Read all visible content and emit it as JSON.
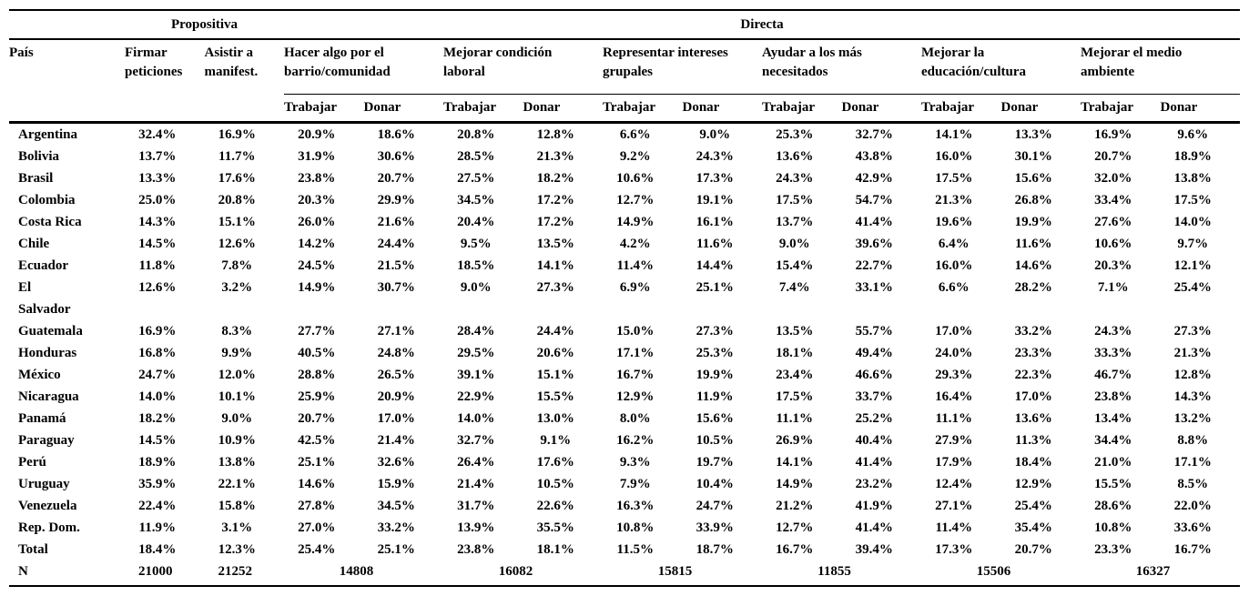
{
  "display": {
    "pais": "País",
    "col_firmar": "Firmar\npeticiones",
    "col_asistir": "Asistir a\nmanifest.",
    "cat_barrio": "Hacer algo por el\nbarrio/comunidad",
    "cat_laboral": "Mejorar condición\nlaboral",
    "cat_grupales": "Representar intereses\ngrupales",
    "cat_necesitados": "Ayudar a los más\nnecesitados",
    "cat_educacion": "Mejorar la\neducación/cultura",
    "cat_ambiente": "Mejorar el medio\nambiente",
    "trabajar": "Trabajar",
    "donar": "Donar"
  },
  "chart_data": {
    "type": "table",
    "groups": [
      {
        "label": "Propositiva",
        "columns": [
          "Firmar peticiones",
          "Asistir a manifest."
        ]
      },
      {
        "label": "Directa",
        "columns": [
          "Hacer algo por el barrio/comunidad",
          "Mejorar condición laboral",
          "Representar intereses grupales",
          "Ayudar a los más necesitados",
          "Mejorar la educación/cultura",
          "Mejorar el medio ambiente"
        ]
      }
    ],
    "row_header": "País",
    "sub_columns": [
      "Trabajar",
      "Donar"
    ],
    "value_column_order": [
      "Firmar peticiones",
      "Asistir a manifest.",
      "Barrio Trabajar",
      "Barrio Donar",
      "Laboral Trabajar",
      "Laboral Donar",
      "Grupales Trabajar",
      "Grupales Donar",
      "Necesitados Trabajar",
      "Necesitados Donar",
      "Educación Trabajar",
      "Educación Donar",
      "Ambiente Trabajar",
      "Ambiente Donar"
    ],
    "rows": [
      {
        "pais": "Argentina",
        "values": [
          "32.4%",
          "16.9%",
          "20.9%",
          "18.6%",
          "20.8%",
          "12.8%",
          "6.6%",
          "9.0%",
          "25.3%",
          "32.7%",
          "14.1%",
          "13.3%",
          "16.9%",
          "9.6%"
        ]
      },
      {
        "pais": "Bolivia",
        "values": [
          "13.7%",
          "11.7%",
          "31.9%",
          "30.6%",
          "28.5%",
          "21.3%",
          "9.2%",
          "24.3%",
          "13.6%",
          "43.8%",
          "16.0%",
          "30.1%",
          "20.7%",
          "18.9%"
        ]
      },
      {
        "pais": "Brasil",
        "values": [
          "13.3%",
          "17.6%",
          "23.8%",
          "20.7%",
          "27.5%",
          "18.2%",
          "10.6%",
          "17.3%",
          "24.3%",
          "42.9%",
          "17.5%",
          "15.6%",
          "32.0%",
          "13.8%"
        ]
      },
      {
        "pais": "Colombia",
        "values": [
          "25.0%",
          "20.8%",
          "20.3%",
          "29.9%",
          "34.5%",
          "17.2%",
          "12.7%",
          "19.1%",
          "17.5%",
          "54.7%",
          "21.3%",
          "26.8%",
          "33.4%",
          "17.5%"
        ]
      },
      {
        "pais": "Costa Rica",
        "values": [
          "14.3%",
          "15.1%",
          "26.0%",
          "21.6%",
          "20.4%",
          "17.2%",
          "14.9%",
          "16.1%",
          "13.7%",
          "41.4%",
          "19.6%",
          "19.9%",
          "27.6%",
          "14.0%"
        ]
      },
      {
        "pais": "Chile",
        "values": [
          "14.5%",
          "12.6%",
          "14.2%",
          "24.4%",
          "9.5%",
          "13.5%",
          "4.2%",
          "11.6%",
          "9.0%",
          "39.6%",
          "6.4%",
          "11.6%",
          "10.6%",
          "9.7%"
        ]
      },
      {
        "pais": "Ecuador",
        "values": [
          "11.8%",
          "7.8%",
          "24.5%",
          "21.5%",
          "18.5%",
          "14.1%",
          "11.4%",
          "14.4%",
          "15.4%",
          "22.7%",
          "16.0%",
          "14.6%",
          "20.3%",
          "12.1%"
        ]
      },
      {
        "pais": "El Salvador",
        "pais_display": "El\nSalvador",
        "values": [
          "12.6%",
          "3.2%",
          "14.9%",
          "30.7%",
          "9.0%",
          "27.3%",
          "6.9%",
          "25.1%",
          "7.4%",
          "33.1%",
          "6.6%",
          "28.2%",
          "7.1%",
          "25.4%"
        ]
      },
      {
        "pais": "Guatemala",
        "values": [
          "16.9%",
          "8.3%",
          "27.7%",
          "27.1%",
          "28.4%",
          "24.4%",
          "15.0%",
          "27.3%",
          "13.5%",
          "55.7%",
          "17.0%",
          "33.2%",
          "24.3%",
          "27.3%"
        ]
      },
      {
        "pais": "Honduras",
        "values": [
          "16.8%",
          "9.9%",
          "40.5%",
          "24.8%",
          "29.5%",
          "20.6%",
          "17.1%",
          "25.3%",
          "18.1%",
          "49.4%",
          "24.0%",
          "23.3%",
          "33.3%",
          "21.3%"
        ]
      },
      {
        "pais": "México",
        "values": [
          "24.7%",
          "12.0%",
          "28.8%",
          "26.5%",
          "39.1%",
          "15.1%",
          "16.7%",
          "19.9%",
          "23.4%",
          "46.6%",
          "29.3%",
          "22.3%",
          "46.7%",
          "12.8%"
        ]
      },
      {
        "pais": "Nicaragua",
        "values": [
          "14.0%",
          "10.1%",
          "25.9%",
          "20.9%",
          "22.9%",
          "15.5%",
          "12.9%",
          "11.9%",
          "17.5%",
          "33.7%",
          "16.4%",
          "17.0%",
          "23.8%",
          "14.3%"
        ]
      },
      {
        "pais": "Panamá",
        "values": [
          "18.2%",
          "9.0%",
          "20.7%",
          "17.0%",
          "14.0%",
          "13.0%",
          "8.0%",
          "15.6%",
          "11.1%",
          "25.2%",
          "11.1%",
          "13.6%",
          "13.4%",
          "13.2%"
        ]
      },
      {
        "pais": "Paraguay",
        "values": [
          "14.5%",
          "10.9%",
          "42.5%",
          "21.4%",
          "32.7%",
          "9.1%",
          "16.2%",
          "10.5%",
          "26.9%",
          "40.4%",
          "27.9%",
          "11.3%",
          "34.4%",
          "8.8%"
        ]
      },
      {
        "pais": "Perú",
        "values": [
          "18.9%",
          "13.8%",
          "25.1%",
          "32.6%",
          "26.4%",
          "17.6%",
          "9.3%",
          "19.7%",
          "14.1%",
          "41.4%",
          "17.9%",
          "18.4%",
          "21.0%",
          "17.1%"
        ]
      },
      {
        "pais": "Uruguay",
        "values": [
          "35.9%",
          "22.1%",
          "14.6%",
          "15.9%",
          "21.4%",
          "10.5%",
          "7.9%",
          "10.4%",
          "14.9%",
          "23.2%",
          "12.4%",
          "12.9%",
          "15.5%",
          "8.5%"
        ]
      },
      {
        "pais": "Venezuela",
        "values": [
          "22.4%",
          "15.8%",
          "27.8%",
          "34.5%",
          "31.7%",
          "22.6%",
          "16.3%",
          "24.7%",
          "21.2%",
          "41.9%",
          "27.1%",
          "25.4%",
          "28.6%",
          "22.0%"
        ]
      },
      {
        "pais": "Rep. Dom.",
        "values": [
          "11.9%",
          "3.1%",
          "27.0%",
          "33.2%",
          "13.9%",
          "35.5%",
          "10.8%",
          "33.9%",
          "12.7%",
          "41.4%",
          "11.4%",
          "35.4%",
          "10.8%",
          "33.6%"
        ]
      },
      {
        "pais": "Total",
        "values": [
          "18.4%",
          "12.3%",
          "25.4%",
          "25.1%",
          "23.8%",
          "18.1%",
          "11.5%",
          "18.7%",
          "16.7%",
          "39.4%",
          "17.3%",
          "20.7%",
          "23.3%",
          "16.7%"
        ]
      }
    ],
    "n_row": {
      "label": "N",
      "values": [
        "21000",
        "21252",
        "14808",
        "16082",
        "15815",
        "11855",
        "15506",
        "16327"
      ],
      "spans": [
        1,
        1,
        2,
        2,
        2,
        2,
        2,
        2
      ]
    }
  }
}
